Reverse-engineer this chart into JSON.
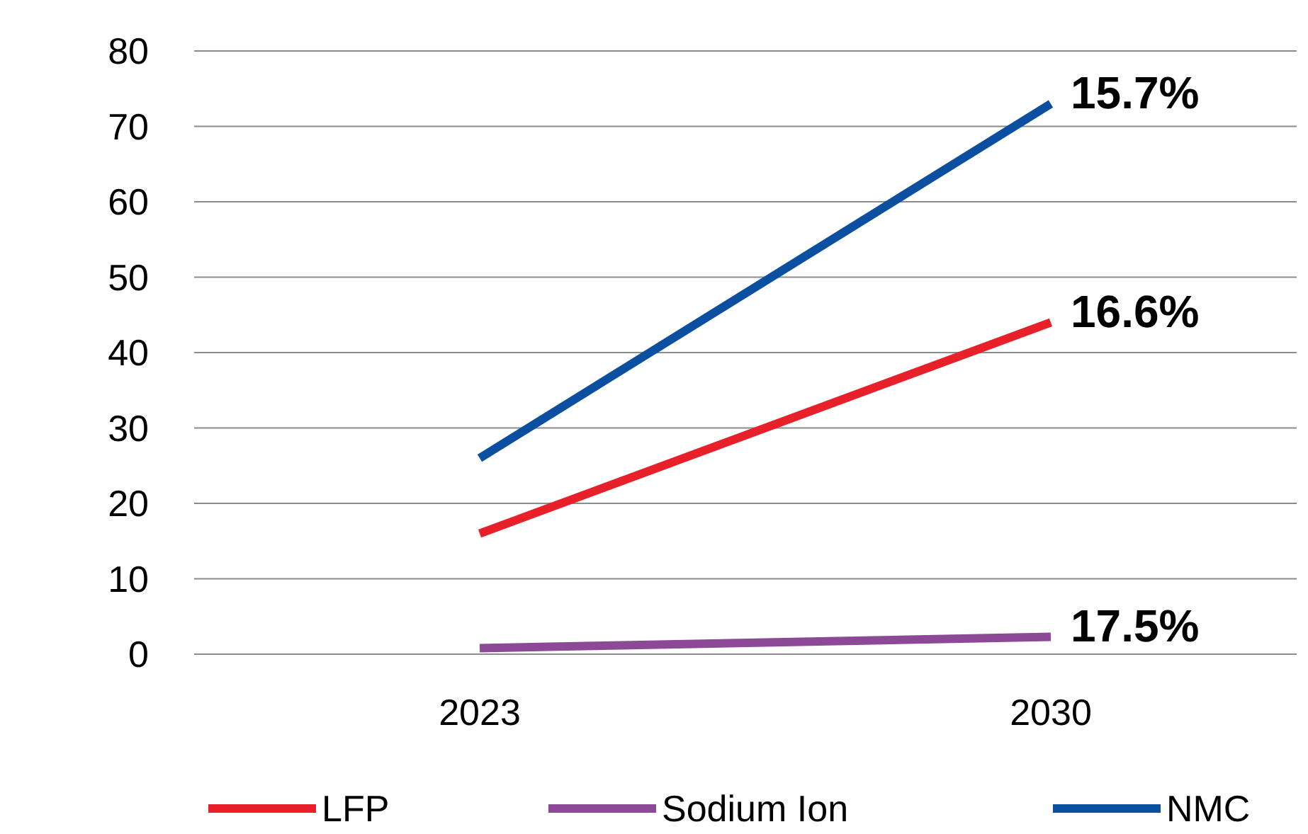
{
  "chart_data": {
    "type": "line",
    "categories": [
      "2023",
      "2030"
    ],
    "series": [
      {
        "name": "LFP",
        "color": "#e8202a",
        "values": [
          16,
          44
        ]
      },
      {
        "name": "Sodium Ion",
        "color": "#8c4a96",
        "values": [
          0.8,
          2.3
        ]
      },
      {
        "name": "NMC",
        "color": "#0b4fa0",
        "values": [
          26,
          73
        ]
      }
    ],
    "ylim": [
      0,
      80
    ],
    "yticks": [
      0,
      10,
      20,
      30,
      40,
      50,
      60,
      70,
      80
    ],
    "grid": "y",
    "legend": "bottom",
    "marker": "none",
    "line_style": "solid",
    "annotations": [
      {
        "text": "16.6%",
        "x": "2030",
        "y": 44
      },
      {
        "text": "17.5%",
        "x": "2030",
        "y": 2.3
      },
      {
        "text": "15.7%",
        "x": "2030",
        "y": 73
      }
    ]
  }
}
